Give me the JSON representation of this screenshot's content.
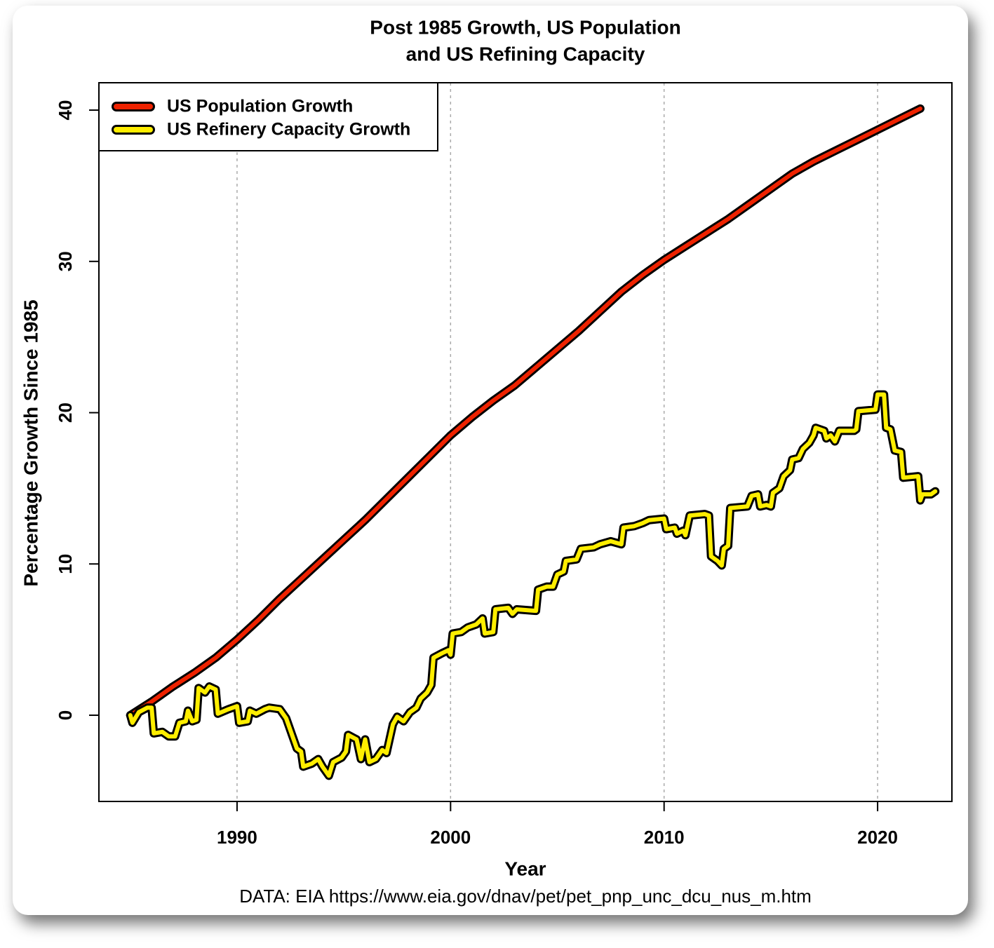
{
  "chart_data": {
    "type": "line",
    "title": [
      "Post 1985 Growth, US Population",
      "and US Refining Capacity"
    ],
    "x_label": "Year",
    "y_label": "Percentage Growth Since 1985",
    "source": "DATA: EIA https://www.eia.gov/dnav/pet/pet_pnp_unc_dcu_nus_m.htm",
    "xlim": [
      1983.53,
      2023.48
    ],
    "ylim": [
      -5.7,
      41.81
    ],
    "xticks": [
      1990,
      2000,
      2010,
      2020
    ],
    "yticks": [
      0,
      10,
      20,
      30,
      40
    ],
    "grid": "x",
    "legend": "top-left",
    "series": [
      {
        "name": "US Population Growth",
        "color": "#ee2200",
        "x": [
          1985,
          1986,
          1987,
          1988,
          1989,
          1990,
          1991,
          1992,
          1993,
          1994,
          1995,
          1996,
          1997,
          1998,
          1999,
          2000,
          2001,
          2002,
          2003,
          2004,
          2005,
          2006,
          2007,
          2008,
          2009,
          2010,
          2011,
          2012,
          2013,
          2014,
          2015,
          2016,
          2017,
          2018,
          2019,
          2020,
          2021,
          2022
        ],
        "values": [
          0,
          0.9,
          1.9,
          2.8,
          3.8,
          5.0,
          6.3,
          7.7,
          9.0,
          10.3,
          11.6,
          12.9,
          14.3,
          15.7,
          17.1,
          18.5,
          19.7,
          20.8,
          21.8,
          23.0,
          24.2,
          25.4,
          26.7,
          28.0,
          29.1,
          30.1,
          31.0,
          31.9,
          32.8,
          33.8,
          34.8,
          35.8,
          36.6,
          37.3,
          38.0,
          38.7,
          39.4,
          40.1
        ]
      },
      {
        "name": "US Refinery Capacity Growth",
        "color": "#ffee00",
        "x": [
          1985.0,
          1985.1,
          1985.4,
          1985.8,
          1986.0,
          1986.1,
          1986.5,
          1986.8,
          1987.1,
          1987.3,
          1987.6,
          1987.7,
          1987.9,
          1988.1,
          1988.2,
          1988.5,
          1988.7,
          1989.0,
          1989.1,
          1989.6,
          1990.0,
          1990.1,
          1990.5,
          1990.6,
          1990.9,
          1991.3,
          1991.5,
          1992.0,
          1992.3,
          1992.6,
          1992.8,
          1993.0,
          1993.1,
          1993.5,
          1993.8,
          1994.0,
          1994.3,
          1994.5,
          1994.9,
          1995.1,
          1995.2,
          1995.6,
          1995.8,
          1996.0,
          1996.2,
          1996.5,
          1996.8,
          1997.0,
          1997.3,
          1997.5,
          1997.8,
          1998.1,
          1998.4,
          1998.6,
          1998.9,
          1999.1,
          1999.2,
          1999.6,
          1999.9,
          2000.0,
          2000.1,
          2000.5,
          2000.8,
          2001.2,
          2001.5,
          2001.6,
          2002.0,
          2002.1,
          2002.7,
          2002.9,
          2003.1,
          2004.0,
          2004.1,
          2004.5,
          2004.8,
          2005.0,
          2005.3,
          2005.4,
          2005.9,
          2006.1,
          2006.7,
          2007.0,
          2007.5,
          2008.0,
          2008.1,
          2008.6,
          2009.0,
          2009.3,
          2010.0,
          2010.1,
          2010.5,
          2010.6,
          2010.9,
          2011.0,
          2011.2,
          2011.9,
          2012.1,
          2012.2,
          2012.5,
          2012.7,
          2012.8,
          2013.0,
          2013.1,
          2013.9,
          2014.1,
          2014.4,
          2014.5,
          2014.8,
          2015.0,
          2015.1,
          2015.4,
          2015.6,
          2015.9,
          2016.0,
          2016.3,
          2016.5,
          2016.8,
          2017.0,
          2017.1,
          2017.5,
          2017.6,
          2017.8,
          2018.0,
          2018.2,
          2018.9,
          2019.0,
          2019.1,
          2019.9,
          2020.0,
          2020.3,
          2020.4,
          2020.6,
          2020.8,
          2021.1,
          2021.2,
          2021.9,
          2022.0,
          2022.1,
          2022.5,
          2022.7
        ],
        "values": [
          0,
          -0.5,
          0.2,
          0.5,
          0.5,
          -1.2,
          -1.1,
          -1.4,
          -1.4,
          -0.5,
          -0.4,
          0.3,
          -0.4,
          -0.3,
          1.8,
          1.5,
          1.9,
          1.7,
          0.1,
          0.4,
          0.6,
          -0.5,
          -0.4,
          0.3,
          0.1,
          0.4,
          0.5,
          0.4,
          -0.2,
          -1.4,
          -2.2,
          -2.4,
          -3.4,
          -3.2,
          -2.9,
          -3.4,
          -4.0,
          -3.1,
          -2.8,
          -2.4,
          -1.3,
          -1.6,
          -2.9,
          -1.6,
          -3.1,
          -2.9,
          -2.3,
          -2.5,
          -0.6,
          -0.1,
          -0.4,
          0.2,
          0.5,
          1.1,
          1.5,
          2.0,
          3.8,
          4.1,
          4.3,
          4.0,
          5.4,
          5.5,
          5.8,
          6.0,
          6.4,
          5.4,
          5.5,
          7.0,
          7.1,
          6.7,
          7.0,
          6.9,
          8.3,
          8.5,
          8.5,
          9.3,
          9.5,
          10.2,
          10.3,
          11.0,
          11.1,
          11.3,
          11.5,
          11.3,
          12.4,
          12.5,
          12.7,
          12.9,
          13.0,
          12.3,
          12.4,
          12.0,
          12.2,
          11.9,
          13.2,
          13.3,
          13.2,
          10.5,
          10.2,
          9.9,
          11.0,
          11.2,
          13.7,
          13.8,
          14.5,
          14.6,
          13.8,
          13.9,
          13.8,
          14.7,
          15.0,
          15.8,
          16.2,
          16.9,
          17.0,
          17.6,
          18.0,
          18.5,
          19.0,
          18.8,
          18.3,
          18.5,
          18.1,
          18.8,
          18.8,
          18.9,
          20.1,
          20.2,
          21.2,
          21.2,
          19.0,
          18.9,
          17.5,
          17.4,
          15.7,
          15.8,
          14.2,
          14.6,
          14.6,
          14.8
        ]
      }
    ]
  }
}
